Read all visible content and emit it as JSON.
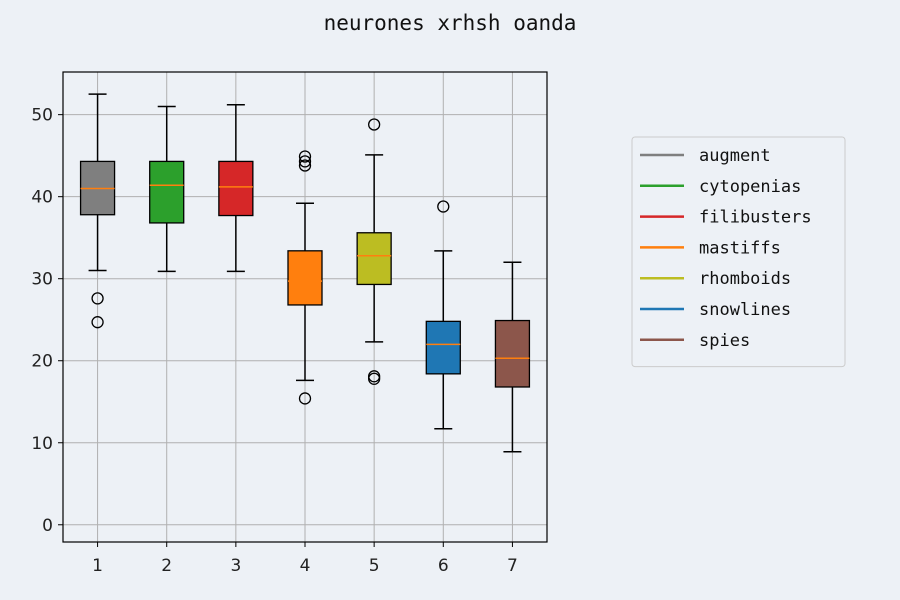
{
  "chart_data": {
    "type": "box",
    "title": "neurones xrhsh oanda",
    "xlabel": "",
    "ylabel": "",
    "categories": [
      "1",
      "2",
      "3",
      "4",
      "5",
      "6",
      "7"
    ],
    "ylim": [
      -2.1,
      55.2
    ],
    "yticks": [
      0,
      10,
      20,
      30,
      40,
      50
    ],
    "grid": true,
    "legend_position": "right",
    "series": [
      {
        "name": "augment",
        "color": "#7f7f7f",
        "whisker_low": 31.0,
        "q1": 37.8,
        "median": 41.0,
        "q3": 44.3,
        "whisker_high": 52.5,
        "outliers": [
          27.6,
          24.7
        ]
      },
      {
        "name": "cytopenias",
        "color": "#2ca02c",
        "whisker_low": 30.9,
        "q1": 36.8,
        "median": 41.4,
        "q3": 44.3,
        "whisker_high": 51.0,
        "outliers": []
      },
      {
        "name": "filibusters",
        "color": "#d62728",
        "whisker_low": 30.9,
        "q1": 37.7,
        "median": 41.2,
        "q3": 44.3,
        "whisker_high": 51.2,
        "outliers": []
      },
      {
        "name": "mastiffs",
        "color": "#ff7f0e",
        "whisker_low": 17.6,
        "q1": 26.8,
        "median": 29.7,
        "q3": 33.4,
        "whisker_high": 39.2,
        "outliers": [
          44.9,
          44.3,
          43.8,
          15.4
        ]
      },
      {
        "name": "rhomboids",
        "color": "#bcbd22",
        "whisker_low": 22.3,
        "q1": 29.3,
        "median": 32.8,
        "q3": 35.6,
        "whisker_high": 45.1,
        "outliers": [
          48.8,
          18.1,
          17.8
        ]
      },
      {
        "name": "snowlines",
        "color": "#1f77b4",
        "whisker_low": 11.7,
        "q1": 18.4,
        "median": 22.0,
        "q3": 24.8,
        "whisker_high": 33.4,
        "outliers": [
          38.8
        ]
      },
      {
        "name": "spies",
        "color": "#8c564b",
        "whisker_low": 8.9,
        "q1": 16.8,
        "median": 20.3,
        "q3": 24.9,
        "whisker_high": 32.0,
        "outliers": []
      }
    ]
  },
  "colors": {
    "median_line": "#ff7f0e",
    "grid": "#b0b0b0",
    "background": "#edf1f6"
  }
}
